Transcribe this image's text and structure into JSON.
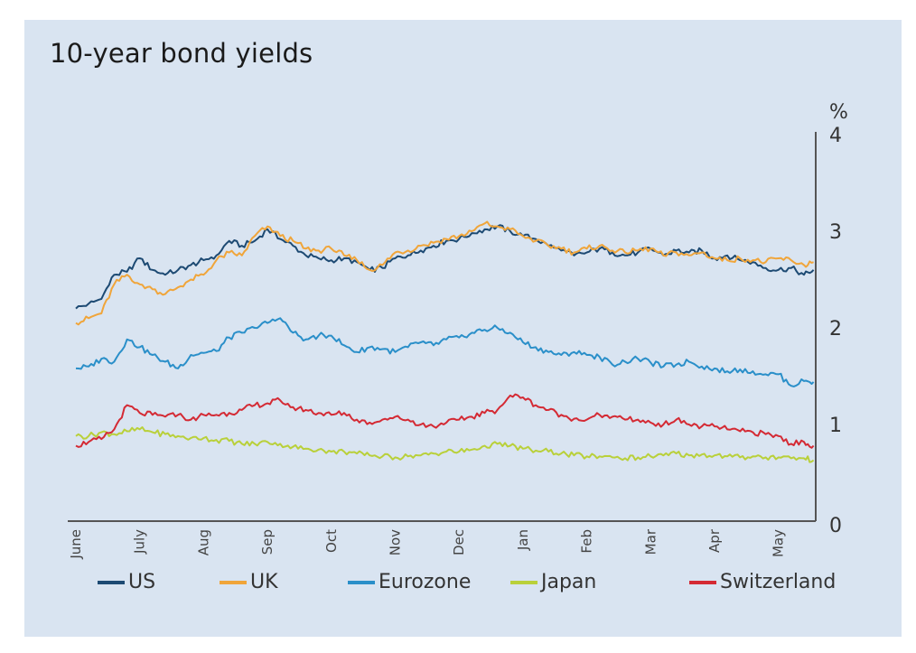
{
  "title": "10-year bond yields",
  "chart_data": {
    "type": "line",
    "title": "10-year bond yields",
    "xlabel": "",
    "ylabel": "%",
    "ylim": [
      0,
      4
    ],
    "yticks": [
      "0",
      "1",
      "2",
      "3",
      "4"
    ],
    "xlim": [
      -0.13,
      11.58
    ],
    "xticks": [
      "June",
      "July",
      "Aug",
      "Sep",
      "Oct",
      "Nov",
      "Dec",
      "Jan",
      "Feb",
      "Mar",
      "Apr",
      "May"
    ],
    "x_unit": "months since start of June",
    "grid": false,
    "legend": "bottom",
    "x": [
      0,
      0.2,
      0.4,
      0.6,
      0.8,
      1.0,
      1.2,
      1.4,
      1.6,
      1.8,
      2.0,
      2.2,
      2.4,
      2.6,
      2.8,
      3.0,
      3.2,
      3.4,
      3.6,
      3.8,
      4.0,
      4.2,
      4.4,
      4.6,
      4.8,
      5.0,
      5.2,
      5.4,
      5.6,
      5.8,
      6.0,
      6.2,
      6.4,
      6.6,
      6.8,
      7.0,
      7.2,
      7.4,
      7.6,
      7.8,
      8.0,
      8.2,
      8.4,
      8.6,
      8.8,
      9.0,
      9.2,
      9.4,
      9.6,
      9.8,
      10.0,
      10.2,
      10.4,
      10.6,
      10.8,
      11.0,
      11.2,
      11.4,
      11.55
    ],
    "series": [
      {
        "name": "US",
        "color": "#1d4a73",
        "values": [
          2.2,
          2.25,
          2.3,
          2.55,
          2.58,
          2.72,
          2.6,
          2.55,
          2.6,
          2.65,
          2.7,
          2.75,
          2.9,
          2.85,
          2.9,
          3.02,
          2.92,
          2.85,
          2.75,
          2.72,
          2.7,
          2.72,
          2.68,
          2.6,
          2.62,
          2.72,
          2.75,
          2.8,
          2.85,
          2.9,
          2.92,
          2.98,
          3.02,
          3.05,
          3.0,
          2.95,
          2.92,
          2.85,
          2.8,
          2.75,
          2.78,
          2.82,
          2.78,
          2.75,
          2.78,
          2.82,
          2.75,
          2.8,
          2.78,
          2.8,
          2.72,
          2.75,
          2.7,
          2.68,
          2.62,
          2.6,
          2.62,
          2.55,
          2.6
        ]
      },
      {
        "name": "UK",
        "color": "#f0a53a",
        "values": [
          2.05,
          2.1,
          2.15,
          2.45,
          2.55,
          2.45,
          2.4,
          2.35,
          2.42,
          2.5,
          2.55,
          2.7,
          2.78,
          2.75,
          2.95,
          3.05,
          2.95,
          2.9,
          2.82,
          2.8,
          2.82,
          2.75,
          2.7,
          2.6,
          2.65,
          2.78,
          2.8,
          2.85,
          2.88,
          2.92,
          2.95,
          3.0,
          3.08,
          3.05,
          3.02,
          2.95,
          2.9,
          2.85,
          2.82,
          2.78,
          2.82,
          2.85,
          2.8,
          2.78,
          2.8,
          2.82,
          2.75,
          2.78,
          2.75,
          2.78,
          2.72,
          2.7,
          2.72,
          2.7,
          2.68,
          2.72,
          2.7,
          2.65,
          2.68
        ]
      },
      {
        "name": "Eurozone",
        "color": "#2a8fc9",
        "values": [
          1.58,
          1.6,
          1.68,
          1.65,
          1.88,
          1.8,
          1.72,
          1.65,
          1.58,
          1.72,
          1.74,
          1.76,
          1.9,
          1.95,
          2.0,
          2.05,
          2.1,
          1.95,
          1.88,
          1.92,
          1.92,
          1.82,
          1.75,
          1.8,
          1.78,
          1.75,
          1.8,
          1.85,
          1.82,
          1.88,
          1.9,
          1.95,
          1.98,
          2.0,
          1.95,
          1.85,
          1.8,
          1.75,
          1.72,
          1.75,
          1.72,
          1.7,
          1.62,
          1.65,
          1.68,
          1.64,
          1.6,
          1.62,
          1.65,
          1.6,
          1.58,
          1.55,
          1.57,
          1.55,
          1.52,
          1.52,
          1.4,
          1.45,
          1.44
        ]
      },
      {
        "name": "Japan",
        "color": "#b9d03a",
        "values": [
          0.88,
          0.88,
          0.92,
          0.9,
          0.93,
          0.95,
          0.92,
          0.9,
          0.88,
          0.86,
          0.86,
          0.84,
          0.83,
          0.8,
          0.8,
          0.82,
          0.8,
          0.77,
          0.75,
          0.74,
          0.72,
          0.72,
          0.7,
          0.68,
          0.67,
          0.66,
          0.67,
          0.68,
          0.7,
          0.72,
          0.72,
          0.74,
          0.78,
          0.8,
          0.78,
          0.75,
          0.73,
          0.72,
          0.7,
          0.68,
          0.67,
          0.67,
          0.66,
          0.65,
          0.66,
          0.67,
          0.68,
          0.7,
          0.68,
          0.69,
          0.68,
          0.67,
          0.66,
          0.67,
          0.66,
          0.66,
          0.65,
          0.65,
          0.63
        ]
      },
      {
        "name": "Switzerland",
        "color": "#d42a34",
        "values": [
          0.78,
          0.82,
          0.85,
          0.95,
          1.2,
          1.12,
          1.1,
          1.08,
          1.1,
          1.05,
          1.1,
          1.1,
          1.12,
          1.15,
          1.2,
          1.22,
          1.25,
          1.18,
          1.15,
          1.12,
          1.1,
          1.12,
          1.05,
          1.02,
          1.05,
          1.08,
          1.05,
          1.0,
          0.98,
          1.02,
          1.05,
          1.08,
          1.12,
          1.15,
          1.3,
          1.28,
          1.2,
          1.15,
          1.1,
          1.06,
          1.05,
          1.1,
          1.08,
          1.05,
          1.05,
          1.02,
          1.0,
          1.05,
          1.0,
          0.98,
          0.98,
          0.95,
          0.93,
          0.92,
          0.9,
          0.88,
          0.8,
          0.82,
          0.78
        ]
      }
    ]
  }
}
